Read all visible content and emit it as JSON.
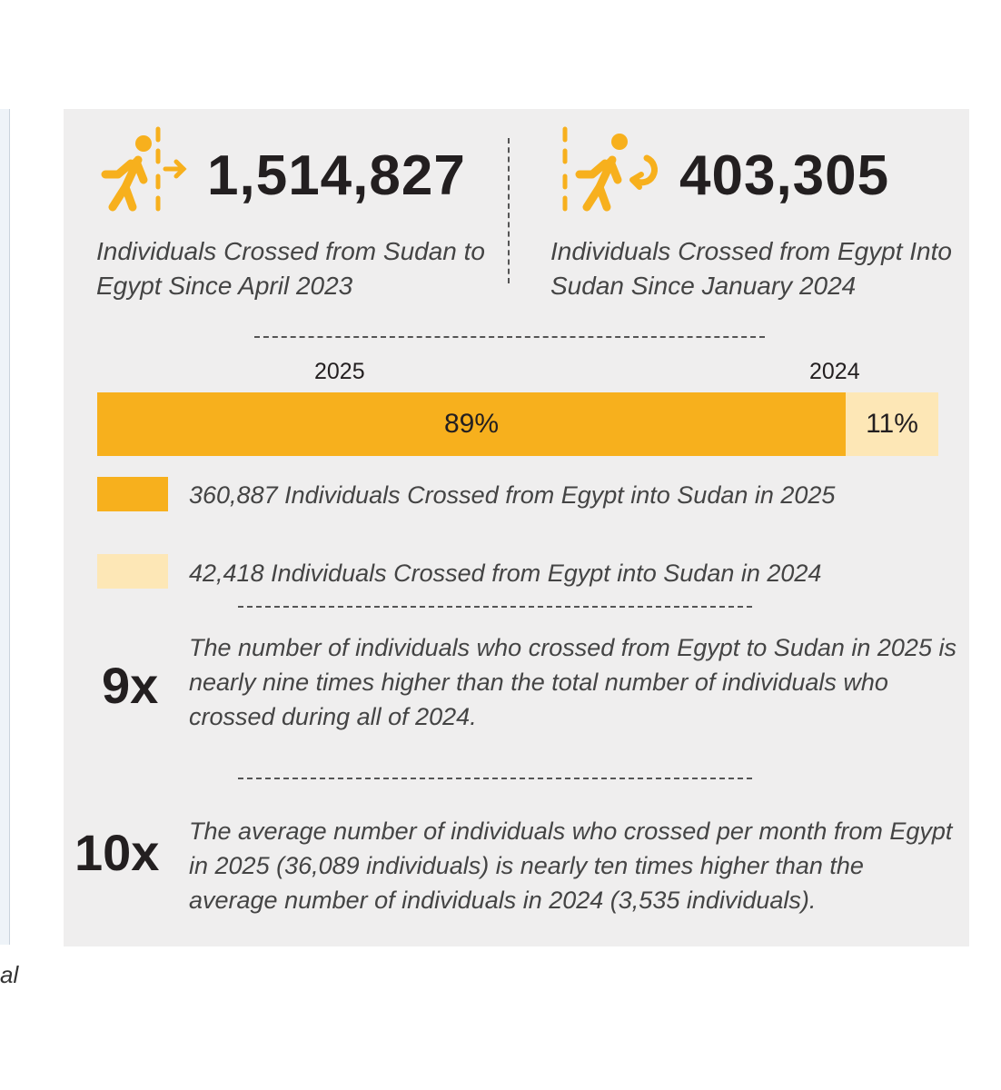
{
  "left_fragment": "al",
  "stats": {
    "sudan_to_egypt": {
      "icon": "person-crossing-out-icon",
      "value": "1,514,827",
      "desc_line1": "Individuals Crossed from Sudan to",
      "desc_line2": "Egypt Since April 2023"
    },
    "egypt_to_sudan": {
      "icon": "person-returning-icon",
      "value": "403,305",
      "desc_line1": "Individuals Crossed from Egypt Into",
      "desc_line2": "Sudan Since January 2024"
    }
  },
  "colors": {
    "accent": "#f7b01d",
    "light": "#fde7b6",
    "panel": "#efeeee",
    "text": "#231f20"
  },
  "chart_data": {
    "type": "bar",
    "orientation": "horizontal-stacked",
    "categories": [
      "2025",
      "2024"
    ],
    "values": [
      89,
      11
    ],
    "value_labels": [
      "89%",
      "11%"
    ],
    "unit": "%"
  },
  "legend": [
    {
      "text": "360,887 Individuals Crossed from Egypt into Sudan in 2025",
      "color": "#f7b01d"
    },
    {
      "text": "42,418 Individuals Crossed from Egypt into Sudan in 2024",
      "color": "#fde7b6"
    }
  ],
  "facts": [
    {
      "multiplier": "9x",
      "line1": "The number of individuals who crossed from Egypt to Sudan in 2025 is",
      "line2": "nearly nine times higher than the total number of individuals who",
      "line3": "crossed during all of 2024."
    },
    {
      "multiplier": "10x",
      "line1": "The average number of individuals who crossed per month from Egypt",
      "line2": "in 2025 (36,089 individuals) is nearly ten times higher than the",
      "line3": "average number of individuals in 2024 (3,535 individuals)."
    }
  ]
}
